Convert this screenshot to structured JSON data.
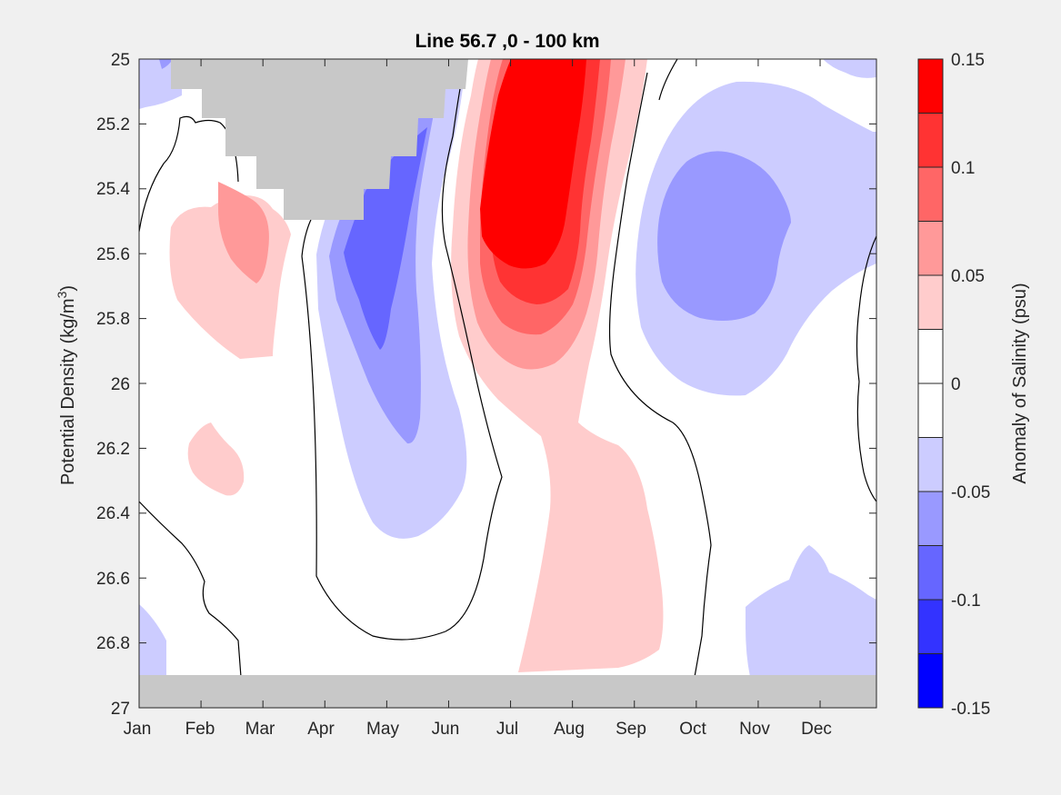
{
  "chart_data": {
    "type": "heatmap",
    "title": "Line 56.7 ,0 - 100 km",
    "xlabel": "",
    "ylabel": "Potential Density (kg/m",
    "ylabel_sup": "3",
    "ylabel_end": ")",
    "x_ticks": [
      "Jan",
      "Feb",
      "Mar",
      "Apr",
      "May",
      "Jun",
      "Jul",
      "Aug",
      "Sep",
      "Oct",
      "Nov",
      "Dec"
    ],
    "y_ticks": [
      "25",
      "25.2",
      "25.4",
      "25.6",
      "25.8",
      "26",
      "26.2",
      "26.4",
      "26.6",
      "26.8",
      "27"
    ],
    "ylim": [
      25,
      27
    ],
    "y_reversed": true,
    "colorbar": {
      "label": "Anomaly of Salinity (psu)",
      "range": [
        -0.15,
        0.15
      ],
      "tick_labels": [
        "0.15",
        "0.1",
        "0.05",
        "0",
        "-0.05",
        "-0.1",
        "-0.15"
      ],
      "levels": [
        {
          "from": 0.125,
          "to": 0.15,
          "color": "#ff0000"
        },
        {
          "from": 0.1,
          "to": 0.125,
          "color": "#ff3333"
        },
        {
          "from": 0.075,
          "to": 0.1,
          "color": "#ff6666"
        },
        {
          "from": 0.05,
          "to": 0.075,
          "color": "#ff9999"
        },
        {
          "from": 0.025,
          "to": 0.05,
          "color": "#ffcccc"
        },
        {
          "from": 0,
          "to": 0.025,
          "color": "#ffffff"
        },
        {
          "from": -0.025,
          "to": 0,
          "color": "#ffffff"
        },
        {
          "from": -0.05,
          "to": -0.025,
          "color": "#ccccff"
        },
        {
          "from": -0.075,
          "to": -0.05,
          "color": "#9999ff"
        },
        {
          "from": -0.1,
          "to": -0.075,
          "color": "#6666ff"
        },
        {
          "from": -0.125,
          "to": -0.1,
          "color": "#3333ff"
        },
        {
          "from": -0.15,
          "to": -0.125,
          "color": "#0000ff"
        }
      ]
    },
    "features": [
      {
        "name": "positive-core-jul-aug",
        "peak_anomaly": 0.15,
        "month_range": [
          "Jun",
          "Sep"
        ],
        "density_range": [
          25,
          26.1
        ]
      },
      {
        "name": "negative-core-apr-jun",
        "peak_anomaly": -0.1,
        "month_range": [
          "Apr",
          "Jun"
        ],
        "density_range": [
          25.2,
          26.5
        ]
      },
      {
        "name": "negative-core-sep-nov",
        "peak_anomaly": -0.075,
        "month_range": [
          "Sep",
          "Nov"
        ],
        "density_range": [
          25.2,
          26.05
        ]
      },
      {
        "name": "positive-patch-feb-mar",
        "peak_anomaly": 0.075,
        "month_range": [
          "Jan",
          "Mar"
        ],
        "density_range": [
          25.3,
          25.95
        ]
      },
      {
        "name": "positive-tail-aug-sep",
        "peak_anomaly": 0.05,
        "month_range": [
          "Jul",
          "Sep"
        ],
        "density_range": [
          26,
          26.9
        ]
      },
      {
        "name": "negative-patch-nov-dec-deep",
        "peak_anomaly": -0.05,
        "month_range": [
          "Oct",
          "Dec"
        ],
        "density_range": [
          26.5,
          26.9
        ]
      }
    ],
    "missing_color": "#c8c8c8",
    "grid": false
  }
}
